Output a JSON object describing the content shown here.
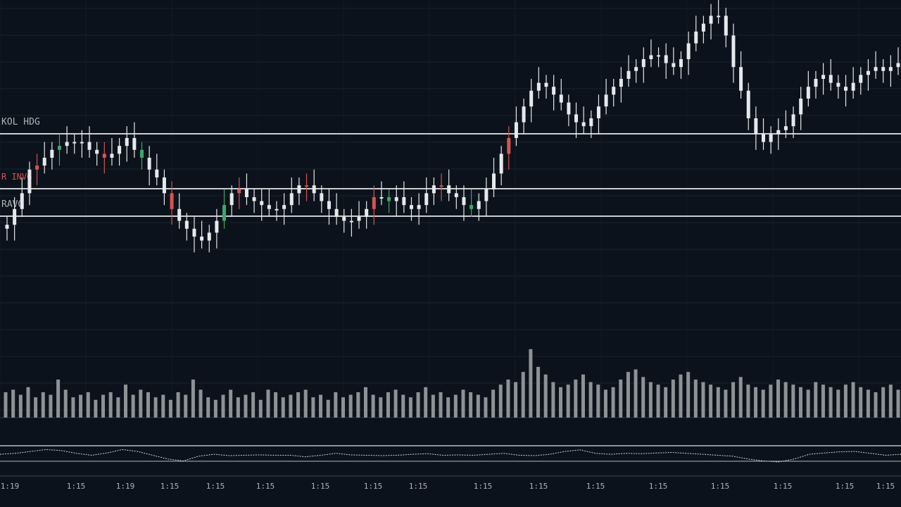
{
  "theme": {
    "background": "#0b121b",
    "grid": "#18222e",
    "candle_up": "#e6e9ec",
    "candle_down": "#e6e9ec",
    "candle_accent_red": "#d9534f",
    "candle_accent_green": "#3fa66a",
    "volume": "#8e9296",
    "level_line": "#c9cdd1",
    "oscillator": "#cfd3d7",
    "label_gray": "#aeb3b8",
    "label_red": "#d9534f"
  },
  "labels": {
    "level1": "KOL HDG",
    "level2": "R INVG",
    "level3": "RAVG"
  },
  "chart_data": [
    {
      "type": "candlestick",
      "title": "",
      "xlabel": "",
      "ylabel": "",
      "grid": true,
      "ylim": [
        0,
        100
      ],
      "x_ticks": [
        "1:19",
        "1:15",
        "1:19",
        "1:15",
        "1:15",
        "1:15",
        "1:15",
        "1:15",
        "1:15",
        "1:15",
        "1:15",
        "1:15",
        "1:15",
        "1:15",
        "1:15",
        "1:15",
        "1:15"
      ],
      "levels": [
        {
          "name": "KOL HDG",
          "value": 74
        },
        {
          "name": "R INVG",
          "value": 61
        },
        {
          "name": "RAVG",
          "value": 55
        }
      ],
      "close": [
        43,
        47,
        51,
        57,
        58,
        60,
        62,
        63,
        64,
        64,
        64,
        62,
        61,
        60,
        61,
        63,
        65,
        62,
        60,
        57,
        55,
        51,
        47,
        44,
        42,
        40,
        39,
        41,
        44,
        48,
        51,
        52,
        50,
        49,
        48,
        47,
        47,
        48,
        51,
        53,
        53,
        51,
        49,
        47,
        45,
        44,
        44,
        45,
        47,
        50,
        50,
        49,
        50,
        48,
        47,
        48,
        51,
        53,
        53,
        51,
        50,
        48,
        47,
        49,
        52,
        56,
        61,
        65,
        69,
        73,
        77,
        79,
        78,
        76,
        74,
        71,
        69,
        68,
        70,
        73,
        76,
        78,
        80,
        82,
        83,
        85,
        86,
        86,
        84,
        83,
        85,
        89,
        92,
        94,
        96,
        96,
        91,
        83,
        77,
        70,
        66,
        64,
        66,
        67,
        68,
        71,
        75,
        78,
        80,
        81,
        79,
        78,
        77,
        79,
        81,
        82,
        83,
        82,
        83,
        84
      ],
      "volume": [
        20,
        22,
        18,
        24,
        16,
        20,
        18,
        30,
        22,
        16,
        18,
        20,
        14,
        18,
        20,
        16,
        26,
        18,
        22,
        20,
        16,
        18,
        14,
        20,
        18,
        30,
        22,
        16,
        14,
        18,
        22,
        16,
        18,
        20,
        14,
        22,
        20,
        16,
        18,
        20,
        22,
        16,
        18,
        14,
        20,
        16,
        18,
        20,
        24,
        18,
        16,
        20,
        22,
        18,
        16,
        20,
        24,
        18,
        20,
        16,
        18,
        22,
        20,
        18,
        16,
        22,
        26,
        30,
        28,
        36,
        54,
        40,
        34,
        28,
        24,
        26,
        30,
        34,
        28,
        26,
        22,
        24,
        30,
        36,
        38,
        32,
        28,
        26,
        24,
        30,
        34,
        36,
        30,
        28,
        26,
        24,
        22,
        28,
        32,
        26,
        24,
        22,
        26,
        30,
        28,
        26,
        24,
        22,
        28,
        26,
        24,
        22,
        26,
        28,
        24,
        22,
        20,
        24,
        26,
        22
      ],
      "oscillator": [
        0.55,
        0.6,
        0.7,
        0.8,
        0.75,
        0.6,
        0.5,
        0.62,
        0.8,
        0.7,
        0.5,
        0.3,
        0.2,
        0.45,
        0.55,
        0.48,
        0.5,
        0.52,
        0.5,
        0.5,
        0.42,
        0.5,
        0.6,
        0.52,
        0.5,
        0.48,
        0.5,
        0.55,
        0.58,
        0.5,
        0.52,
        0.5,
        0.55,
        0.6,
        0.5,
        0.48,
        0.55,
        0.7,
        0.78,
        0.6,
        0.55,
        0.6,
        0.58,
        0.62,
        0.65,
        0.6,
        0.55,
        0.5,
        0.45,
        0.3,
        0.2,
        0.15,
        0.3,
        0.55,
        0.62,
        0.68,
        0.7,
        0.6,
        0.5,
        0.55
      ]
    }
  ]
}
